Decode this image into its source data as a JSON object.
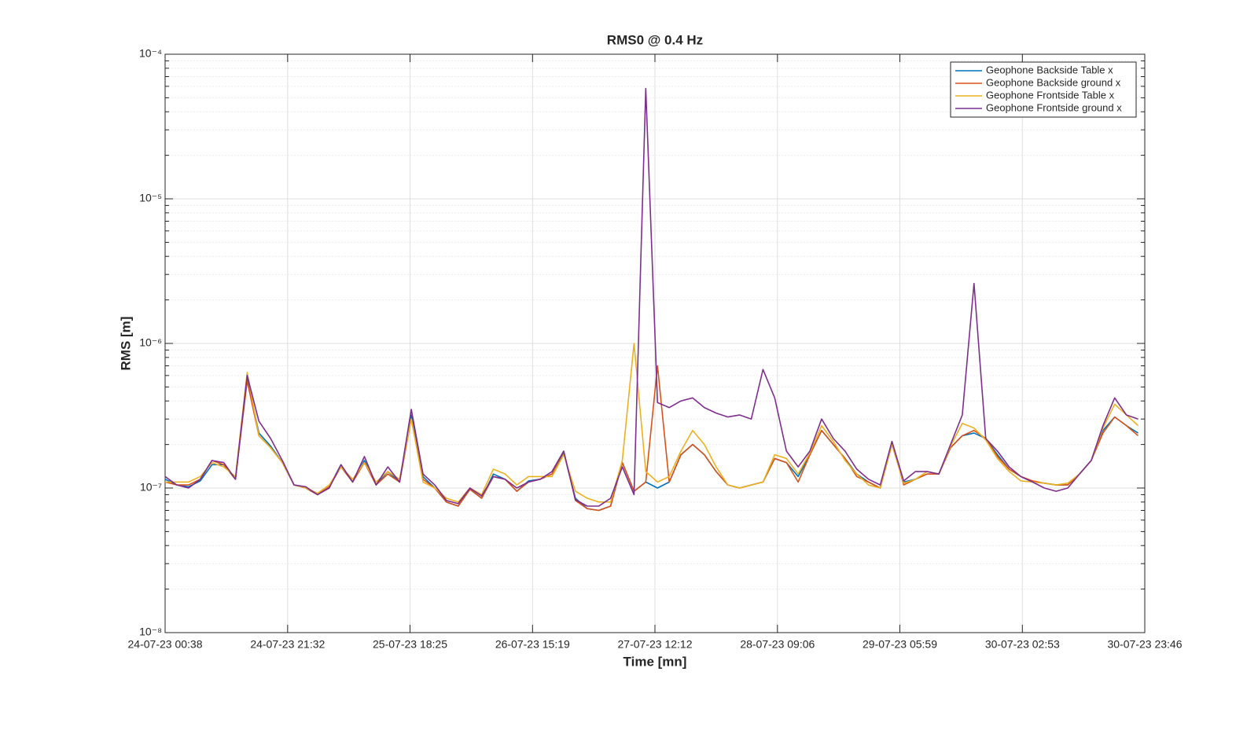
{
  "chart_data": {
    "type": "line",
    "title": "RMS0 @ 0.4 Hz",
    "xlabel": "Time [mn]",
    "ylabel": "RMS [m]",
    "yscale": "log",
    "grid": true,
    "minor_grid": true,
    "legend": "northeast",
    "xlim": [
      "2023-07-24T00:38",
      "2023-07-30T23:46"
    ],
    "xticks": [
      {
        "value": "2023-07-24T00:38",
        "label": "24-07-23 00:38"
      },
      {
        "value": "2023-07-24T21:32",
        "label": "24-07-23 21:32"
      },
      {
        "value": "2023-07-25T18:25",
        "label": "25-07-23 18:25"
      },
      {
        "value": "2023-07-26T15:19",
        "label": "26-07-23 15:19"
      },
      {
        "value": "2023-07-27T12:12",
        "label": "27-07-23 12:12"
      },
      {
        "value": "2023-07-28T09:06",
        "label": "28-07-23 09:06"
      },
      {
        "value": "2023-07-29T05:59",
        "label": "29-07-23 05:59"
      },
      {
        "value": "2023-07-30T02:53",
        "label": "30-07-23 02:53"
      },
      {
        "value": "2023-07-30T23:46",
        "label": "30-07-23 23:46"
      }
    ],
    "ylim": [
      1e-08,
      0.0001
    ],
    "yticks": [
      {
        "value": 1e-08,
        "label": "10⁻⁸"
      },
      {
        "value": 1e-07,
        "label": "10⁻⁷"
      },
      {
        "value": 1e-06,
        "label": "10⁻⁶"
      },
      {
        "value": 1e-05,
        "label": "10⁻⁵"
      },
      {
        "value": 0.0001,
        "label": "10⁻⁴"
      }
    ],
    "x": [
      "2023-07-24T00:38",
      "2023-07-24T02:38",
      "2023-07-24T04:38",
      "2023-07-24T06:38",
      "2023-07-24T08:38",
      "2023-07-24T10:38",
      "2023-07-24T12:38",
      "2023-07-24T14:38",
      "2023-07-24T16:38",
      "2023-07-24T18:38",
      "2023-07-24T20:38",
      "2023-07-24T22:38",
      "2023-07-25T00:38",
      "2023-07-25T02:38",
      "2023-07-25T04:38",
      "2023-07-25T06:38",
      "2023-07-25T08:38",
      "2023-07-25T10:38",
      "2023-07-25T12:38",
      "2023-07-25T14:38",
      "2023-07-25T16:38",
      "2023-07-25T18:38",
      "2023-07-25T20:38",
      "2023-07-25T22:38",
      "2023-07-26T00:38",
      "2023-07-26T02:38",
      "2023-07-26T04:38",
      "2023-07-26T06:38",
      "2023-07-26T08:38",
      "2023-07-26T10:38",
      "2023-07-26T12:38",
      "2023-07-26T14:38",
      "2023-07-26T16:38",
      "2023-07-26T18:38",
      "2023-07-26T20:38",
      "2023-07-26T22:38",
      "2023-07-27T00:38",
      "2023-07-27T02:38",
      "2023-07-27T04:38",
      "2023-07-27T06:38",
      "2023-07-27T08:38",
      "2023-07-27T10:38",
      "2023-07-27T12:38",
      "2023-07-27T14:38",
      "2023-07-27T16:38",
      "2023-07-27T18:38",
      "2023-07-27T20:38",
      "2023-07-27T22:38",
      "2023-07-28T00:38",
      "2023-07-28T02:38",
      "2023-07-28T04:38",
      "2023-07-28T06:38",
      "2023-07-28T08:38",
      "2023-07-28T10:38",
      "2023-07-28T12:38",
      "2023-07-28T14:38",
      "2023-07-28T16:38",
      "2023-07-28T18:38",
      "2023-07-28T20:38",
      "2023-07-28T22:38",
      "2023-07-29T00:38",
      "2023-07-29T02:38",
      "2023-07-29T04:38",
      "2023-07-29T06:38",
      "2023-07-29T08:38",
      "2023-07-29T10:38",
      "2023-07-29T12:38",
      "2023-07-29T14:38",
      "2023-07-29T16:38",
      "2023-07-29T18:38",
      "2023-07-29T20:38",
      "2023-07-29T22:38",
      "2023-07-30T00:38",
      "2023-07-30T02:38",
      "2023-07-30T04:38",
      "2023-07-30T06:38",
      "2023-07-30T08:38",
      "2023-07-30T10:38",
      "2023-07-30T12:38",
      "2023-07-30T14:38",
      "2023-07-30T16:38",
      "2023-07-30T18:38",
      "2023-07-30T20:38",
      "2023-07-30T22:38"
    ],
    "series": [
      {
        "name": "Geophone Backside Table x",
        "color": "#0072BD",
        "values": [
          1.15e-07,
          1.05e-07,
          1.02e-07,
          1.12e-07,
          1.45e-07,
          1.45e-07,
          1.15e-07,
          5.8e-07,
          2.4e-07,
          1.95e-07,
          1.5e-07,
          1.05e-07,
          1e-07,
          9e-08,
          1.02e-07,
          1.45e-07,
          1.1e-07,
          1.55e-07,
          1.05e-07,
          1.3e-07,
          1.1e-07,
          3.2e-07,
          1.2e-07,
          1e-07,
          8e-08,
          7.5e-08,
          9.8e-08,
          8.5e-08,
          1.25e-07,
          1.15e-07,
          9.5e-08,
          1.12e-07,
          1.15e-07,
          1.25e-07,
          1.75e-07,
          8.5e-08,
          7.2e-08,
          7e-08,
          7.5e-08,
          1.5e-07,
          9.5e-08,
          1.1e-07,
          1e-07,
          1.1e-07,
          1.7e-07,
          2e-07,
          1.7e-07,
          1.3e-07,
          1.05e-07,
          1e-07,
          1.05e-07,
          1.1e-07,
          1.6e-07,
          1.5e-07,
          1.2e-07,
          1.7e-07,
          2.5e-07,
          2e-07,
          1.6e-07,
          1.25e-07,
          1.1e-07,
          1e-07,
          2e-07,
          1.1e-07,
          1.15e-07,
          1.25e-07,
          1.25e-07,
          1.9e-07,
          2.3e-07,
          2.4e-07,
          2.2e-07,
          1.7e-07,
          1.35e-07,
          1.2e-07,
          1.1e-07,
          1.08e-07,
          1.05e-07,
          1.05e-07,
          1.25e-07,
          1.55e-07,
          2.5e-07,
          3.1e-07,
          2.7e-07,
          2.4e-07
        ]
      },
      {
        "name": "Geophone Backside ground x",
        "color": "#D95319",
        "values": [
          1.1e-07,
          1.05e-07,
          1.05e-07,
          1.15e-07,
          1.55e-07,
          1.45e-07,
          1.15e-07,
          5.5e-07,
          2.3e-07,
          1.9e-07,
          1.5e-07,
          1.05e-07,
          1e-07,
          9e-08,
          1.02e-07,
          1.4e-07,
          1.1e-07,
          1.5e-07,
          1.05e-07,
          1.25e-07,
          1.1e-07,
          3e-07,
          1.15e-07,
          1e-07,
          8e-08,
          7.5e-08,
          9.8e-08,
          8.5e-08,
          1.2e-07,
          1.15e-07,
          9.5e-08,
          1.1e-07,
          1.15e-07,
          1.25e-07,
          1.8e-07,
          8.2e-08,
          7.2e-08,
          7e-08,
          7.5e-08,
          1.5e-07,
          9.5e-08,
          1.1e-07,
          7e-07,
          1.1e-07,
          1.7e-07,
          2e-07,
          1.7e-07,
          1.3e-07,
          1.05e-07,
          1e-07,
          1.05e-07,
          1.1e-07,
          1.6e-07,
          1.5e-07,
          1.1e-07,
          1.7e-07,
          2.5e-07,
          2e-07,
          1.6e-07,
          1.2e-07,
          1.1e-07,
          1e-07,
          2.1e-07,
          1.05e-07,
          1.15e-07,
          1.25e-07,
          1.25e-07,
          1.9e-07,
          2.3e-07,
          2.5e-07,
          2.2e-07,
          1.65e-07,
          1.35e-07,
          1.2e-07,
          1.12e-07,
          1.08e-07,
          1.05e-07,
          1.05e-07,
          1.25e-07,
          1.55e-07,
          2.4e-07,
          3.1e-07,
          2.7e-07,
          2.3e-07
        ]
      },
      {
        "name": "Geophone Frontside Table x",
        "color": "#EDB120",
        "values": [
          1.1e-07,
          1.1e-07,
          1.1e-07,
          1.2e-07,
          1.5e-07,
          1.4e-07,
          1.2e-07,
          6.3e-07,
          2.3e-07,
          1.9e-07,
          1.5e-07,
          1.05e-07,
          1e-07,
          9.2e-08,
          1.05e-07,
          1.4e-07,
          1.15e-07,
          1.5e-07,
          1.1e-07,
          1.3e-07,
          1.15e-07,
          3e-07,
          1.1e-07,
          1e-07,
          8.5e-08,
          8e-08,
          1e-07,
          9e-08,
          1.35e-07,
          1.25e-07,
          1.05e-07,
          1.2e-07,
          1.2e-07,
          1.2e-07,
          1.7e-07,
          9.5e-08,
          8.5e-08,
          8e-08,
          8e-08,
          1.55e-07,
          1e-06,
          1.3e-07,
          1.1e-07,
          1.2e-07,
          1.8e-07,
          2.5e-07,
          2e-07,
          1.4e-07,
          1.05e-07,
          1e-07,
          1.05e-07,
          1.1e-07,
          1.7e-07,
          1.6e-07,
          1.25e-07,
          1.75e-07,
          2.7e-07,
          2.1e-07,
          1.55e-07,
          1.25e-07,
          1.05e-07,
          1e-07,
          2e-07,
          1.08e-07,
          1.15e-07,
          1.3e-07,
          1.25e-07,
          1.95e-07,
          2.8e-07,
          2.6e-07,
          2.15e-07,
          1.6e-07,
          1.3e-07,
          1.12e-07,
          1.1e-07,
          1.08e-07,
          1.05e-07,
          1.08e-07,
          1.25e-07,
          1.55e-07,
          2.6e-07,
          3.8e-07,
          3.2e-07,
          2.7e-07
        ]
      },
      {
        "name": "Geophone Frontside ground x",
        "color": "#7E2F8E",
        "values": [
          1.2e-07,
          1.05e-07,
          1e-07,
          1.15e-07,
          1.55e-07,
          1.5e-07,
          1.15e-07,
          6e-07,
          2.9e-07,
          2.2e-07,
          1.55e-07,
          1.05e-07,
          1.02e-07,
          9e-08,
          1e-07,
          1.45e-07,
          1.1e-07,
          1.65e-07,
          1.05e-07,
          1.4e-07,
          1.1e-07,
          3.5e-07,
          1.25e-07,
          1.05e-07,
          8.2e-08,
          7.8e-08,
          1e-07,
          8.8e-08,
          1.2e-07,
          1.15e-07,
          1e-07,
          1.1e-07,
          1.15e-07,
          1.3e-07,
          1.8e-07,
          8.3e-08,
          7.5e-08,
          7.5e-08,
          8.5e-08,
          1.4e-07,
          9e-08,
          5.8e-05,
          3.9e-07,
          3.6e-07,
          4e-07,
          4.2e-07,
          3.6e-07,
          3.3e-07,
          3.1e-07,
          3.2e-07,
          3e-07,
          6.6e-07,
          4.2e-07,
          1.8e-07,
          1.4e-07,
          1.8e-07,
          3e-07,
          2.2e-07,
          1.8e-07,
          1.35e-07,
          1.15e-07,
          1.05e-07,
          2.1e-07,
          1.12e-07,
          1.3e-07,
          1.3e-07,
          1.25e-07,
          2e-07,
          3.2e-07,
          2.6e-06,
          2.2e-07,
          1.8e-07,
          1.4e-07,
          1.2e-07,
          1.1e-07,
          1e-07,
          9.5e-08,
          1e-07,
          1.25e-07,
          1.55e-07,
          2.7e-07,
          4.2e-07,
          3.2e-07,
          3e-07
        ]
      }
    ]
  }
}
